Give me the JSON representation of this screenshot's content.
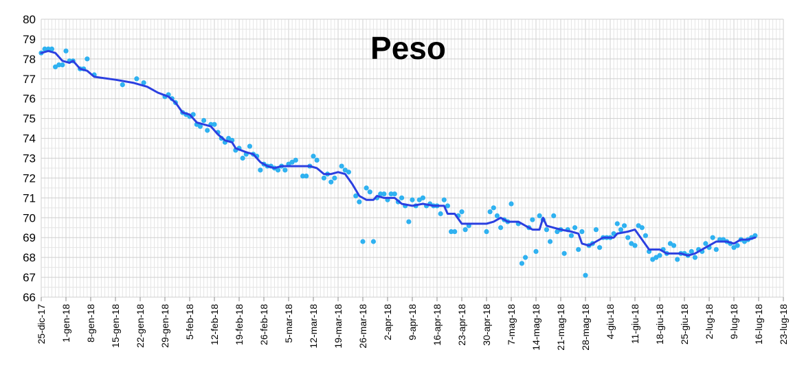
{
  "chart_data": {
    "type": "scatter",
    "title": "Peso",
    "xlabel": "",
    "ylabel": "",
    "x_axis": {
      "type": "date",
      "range": [
        "2017-12-25",
        "2018-07-23"
      ],
      "tick_labels": [
        "25-dic-17",
        "1-gen-18",
        "8-gen-18",
        "15-gen-18",
        "22-gen-18",
        "29-gen-18",
        "5-feb-18",
        "12-feb-18",
        "19-feb-18",
        "26-feb-18",
        "5-mar-18",
        "12-mar-18",
        "19-mar-18",
        "26-mar-18",
        "2-apr-18",
        "9-apr-18",
        "16-apr-18",
        "23-apr-18",
        "30-apr-18",
        "7-mag-18",
        "14-mag-18",
        "21-mag-18",
        "28-mag-18",
        "4-giu-18",
        "11-giu-18",
        "18-giu-18",
        "25-giu-18",
        "2-lug-18",
        "9-lug-18",
        "16-lug-18",
        "23-lug-18"
      ]
    },
    "y_axis": {
      "range": [
        66,
        80
      ],
      "tick_labels": [
        "66",
        "67",
        "68",
        "69",
        "70",
        "71",
        "72",
        "73",
        "74",
        "75",
        "76",
        "77",
        "78",
        "79",
        "80"
      ]
    },
    "grid": true,
    "colors": {
      "points": "#2fb1f0",
      "trend": "#2b3fe0"
    },
    "series": [
      {
        "kind": "points",
        "points": [
          [
            "2017-12-25",
            78.3
          ],
          [
            "2017-12-26",
            78.5
          ],
          [
            "2017-12-27",
            78.5
          ],
          [
            "2017-12-28",
            78.5
          ],
          [
            "2017-12-29",
            77.6
          ],
          [
            "2017-12-30",
            77.7
          ],
          [
            "2017-12-31",
            77.7
          ],
          [
            "2018-01-01",
            78.4
          ],
          [
            "2018-01-02",
            77.9
          ],
          [
            "2018-01-03",
            77.9
          ],
          [
            "2018-01-05",
            77.5
          ],
          [
            "2018-01-06",
            77.5
          ],
          [
            "2018-01-07",
            78.0
          ],
          [
            "2018-01-09",
            77.2
          ],
          [
            "2018-01-17",
            76.7
          ],
          [
            "2018-01-21",
            77.0
          ],
          [
            "2018-01-23",
            76.8
          ],
          [
            "2018-01-29",
            76.1
          ],
          [
            "2018-01-30",
            76.2
          ],
          [
            "2018-01-31",
            76.0
          ],
          [
            "2018-02-01",
            75.8
          ],
          [
            "2018-02-03",
            75.3
          ],
          [
            "2018-02-04",
            75.2
          ],
          [
            "2018-02-05",
            75.1
          ],
          [
            "2018-02-06",
            75.2
          ],
          [
            "2018-02-07",
            74.7
          ],
          [
            "2018-02-08",
            74.6
          ],
          [
            "2018-02-09",
            74.9
          ],
          [
            "2018-02-10",
            74.4
          ],
          [
            "2018-02-11",
            74.7
          ],
          [
            "2018-02-12",
            74.7
          ],
          [
            "2018-02-13",
            74.3
          ],
          [
            "2018-02-14",
            74.0
          ],
          [
            "2018-02-15",
            73.8
          ],
          [
            "2018-02-16",
            74.0
          ],
          [
            "2018-02-17",
            73.9
          ],
          [
            "2018-02-18",
            73.4
          ],
          [
            "2018-02-19",
            73.5
          ],
          [
            "2018-02-20",
            73.0
          ],
          [
            "2018-02-21",
            73.2
          ],
          [
            "2018-02-22",
            73.6
          ],
          [
            "2018-02-23",
            73.2
          ],
          [
            "2018-02-24",
            73.1
          ],
          [
            "2018-02-25",
            72.4
          ],
          [
            "2018-02-26",
            72.7
          ],
          [
            "2018-02-27",
            72.6
          ],
          [
            "2018-02-28",
            72.6
          ],
          [
            "2018-03-01",
            72.5
          ],
          [
            "2018-03-02",
            72.4
          ],
          [
            "2018-03-03",
            72.6
          ],
          [
            "2018-03-04",
            72.4
          ],
          [
            "2018-03-05",
            72.7
          ],
          [
            "2018-03-06",
            72.8
          ],
          [
            "2018-03-07",
            72.9
          ],
          [
            "2018-03-09",
            72.1
          ],
          [
            "2018-03-10",
            72.1
          ],
          [
            "2018-03-11",
            72.6
          ],
          [
            "2018-03-12",
            73.1
          ],
          [
            "2018-03-13",
            72.9
          ],
          [
            "2018-03-15",
            72.0
          ],
          [
            "2018-03-16",
            72.2
          ],
          [
            "2018-03-17",
            71.8
          ],
          [
            "2018-03-18",
            72.0
          ],
          [
            "2018-03-20",
            72.6
          ],
          [
            "2018-03-21",
            72.4
          ],
          [
            "2018-03-22",
            72.3
          ],
          [
            "2018-03-24",
            71.1
          ],
          [
            "2018-03-25",
            70.8
          ],
          [
            "2018-03-26",
            68.8
          ],
          [
            "2018-03-27",
            71.5
          ],
          [
            "2018-03-28",
            71.3
          ],
          [
            "2018-03-29",
            68.8
          ],
          [
            "2018-03-30",
            71.0
          ],
          [
            "2018-03-31",
            71.2
          ],
          [
            "2018-04-01",
            71.2
          ],
          [
            "2018-04-02",
            70.9
          ],
          [
            "2018-04-03",
            71.2
          ],
          [
            "2018-04-04",
            71.2
          ],
          [
            "2018-04-05",
            70.8
          ],
          [
            "2018-04-06",
            71.0
          ],
          [
            "2018-04-07",
            70.6
          ],
          [
            "2018-04-08",
            69.8
          ],
          [
            "2018-04-09",
            70.9
          ],
          [
            "2018-04-10",
            70.6
          ],
          [
            "2018-04-11",
            70.9
          ],
          [
            "2018-04-12",
            71.0
          ],
          [
            "2018-04-13",
            70.6
          ],
          [
            "2018-04-14",
            70.7
          ],
          [
            "2018-04-15",
            70.6
          ],
          [
            "2018-04-16",
            70.6
          ],
          [
            "2018-04-17",
            70.2
          ],
          [
            "2018-04-18",
            70.9
          ],
          [
            "2018-04-19",
            70.6
          ],
          [
            "2018-04-20",
            69.3
          ],
          [
            "2018-04-21",
            69.3
          ],
          [
            "2018-04-22",
            70.1
          ],
          [
            "2018-04-23",
            70.3
          ],
          [
            "2018-04-24",
            69.4
          ],
          [
            "2018-04-25",
            69.6
          ],
          [
            "2018-04-30",
            69.3
          ],
          [
            "2018-05-01",
            70.3
          ],
          [
            "2018-05-02",
            70.5
          ],
          [
            "2018-05-03",
            70.1
          ],
          [
            "2018-05-04",
            69.5
          ],
          [
            "2018-05-05",
            69.9
          ],
          [
            "2018-05-06",
            69.8
          ],
          [
            "2018-05-07",
            70.7
          ],
          [
            "2018-05-09",
            69.7
          ],
          [
            "2018-05-10",
            67.7
          ],
          [
            "2018-05-11",
            68.0
          ],
          [
            "2018-05-12",
            69.5
          ],
          [
            "2018-05-13",
            69.9
          ],
          [
            "2018-05-14",
            68.3
          ],
          [
            "2018-05-15",
            70.1
          ],
          [
            "2018-05-16",
            69.9
          ],
          [
            "2018-05-17",
            69.4
          ],
          [
            "2018-05-18",
            68.8
          ],
          [
            "2018-05-19",
            70.1
          ],
          [
            "2018-05-20",
            69.3
          ],
          [
            "2018-05-21",
            69.4
          ],
          [
            "2018-05-22",
            68.2
          ],
          [
            "2018-05-23",
            69.4
          ],
          [
            "2018-05-24",
            69.1
          ],
          [
            "2018-05-25",
            69.5
          ],
          [
            "2018-05-26",
            68.4
          ],
          [
            "2018-05-27",
            69.3
          ],
          [
            "2018-05-28",
            67.1
          ],
          [
            "2018-05-29",
            68.6
          ],
          [
            "2018-05-30",
            68.7
          ],
          [
            "2018-05-31",
            69.4
          ],
          [
            "2018-06-01",
            68.5
          ],
          [
            "2018-06-02",
            69.0
          ],
          [
            "2018-06-03",
            69.0
          ],
          [
            "2018-06-04",
            69.0
          ],
          [
            "2018-06-05",
            69.2
          ],
          [
            "2018-06-06",
            69.7
          ],
          [
            "2018-06-07",
            69.4
          ],
          [
            "2018-06-08",
            69.6
          ],
          [
            "2018-06-09",
            69.0
          ],
          [
            "2018-06-10",
            68.7
          ],
          [
            "2018-06-11",
            68.6
          ],
          [
            "2018-06-12",
            69.6
          ],
          [
            "2018-06-13",
            69.5
          ],
          [
            "2018-06-14",
            69.1
          ],
          [
            "2018-06-15",
            68.3
          ],
          [
            "2018-06-16",
            67.9
          ],
          [
            "2018-06-17",
            68.0
          ],
          [
            "2018-06-18",
            68.1
          ],
          [
            "2018-06-19",
            68.4
          ],
          [
            "2018-06-20",
            68.2
          ],
          [
            "2018-06-21",
            68.7
          ],
          [
            "2018-06-22",
            68.6
          ],
          [
            "2018-06-23",
            67.9
          ],
          [
            "2018-06-24",
            68.2
          ],
          [
            "2018-06-25",
            68.2
          ],
          [
            "2018-06-26",
            68.1
          ],
          [
            "2018-06-27",
            68.3
          ],
          [
            "2018-06-28",
            68.0
          ],
          [
            "2018-06-29",
            68.4
          ],
          [
            "2018-06-30",
            68.3
          ],
          [
            "2018-07-01",
            68.7
          ],
          [
            "2018-07-02",
            68.5
          ],
          [
            "2018-07-03",
            69.0
          ],
          [
            "2018-07-04",
            68.4
          ],
          [
            "2018-07-05",
            68.9
          ],
          [
            "2018-07-06",
            68.9
          ],
          [
            "2018-07-07",
            68.8
          ],
          [
            "2018-07-08",
            68.7
          ],
          [
            "2018-07-09",
            68.5
          ],
          [
            "2018-07-10",
            68.6
          ],
          [
            "2018-07-11",
            68.9
          ],
          [
            "2018-07-12",
            68.8
          ],
          [
            "2018-07-13",
            68.9
          ],
          [
            "2018-07-14",
            69.0
          ],
          [
            "2018-07-15",
            69.1
          ]
        ]
      },
      {
        "kind": "trend-line",
        "points": [
          [
            "2017-12-25",
            78.3
          ],
          [
            "2017-12-27",
            78.4
          ],
          [
            "2017-12-29",
            78.3
          ],
          [
            "2017-12-31",
            77.9
          ],
          [
            "2018-01-02",
            77.8
          ],
          [
            "2018-01-03",
            77.9
          ],
          [
            "2018-01-05",
            77.5
          ],
          [
            "2018-01-07",
            77.4
          ],
          [
            "2018-01-09",
            77.1
          ],
          [
            "2018-01-15",
            76.95
          ],
          [
            "2018-01-20",
            76.8
          ],
          [
            "2018-01-24",
            76.6
          ],
          [
            "2018-01-27",
            76.3
          ],
          [
            "2018-01-30",
            76.1
          ],
          [
            "2018-02-01",
            75.8
          ],
          [
            "2018-02-03",
            75.3
          ],
          [
            "2018-02-05",
            75.2
          ],
          [
            "2018-02-07",
            74.8
          ],
          [
            "2018-02-09",
            74.7
          ],
          [
            "2018-02-11",
            74.6
          ],
          [
            "2018-02-13",
            74.2
          ],
          [
            "2018-02-15",
            73.9
          ],
          [
            "2018-02-17",
            73.8
          ],
          [
            "2018-02-18",
            73.5
          ],
          [
            "2018-02-21",
            73.3
          ],
          [
            "2018-02-23",
            73.2
          ],
          [
            "2018-02-25",
            72.8
          ],
          [
            "2018-02-27",
            72.6
          ],
          [
            "2018-03-01",
            72.5
          ],
          [
            "2018-03-03",
            72.6
          ],
          [
            "2018-03-05",
            72.6
          ],
          [
            "2018-03-08",
            72.6
          ],
          [
            "2018-03-11",
            72.6
          ],
          [
            "2018-03-13",
            72.5
          ],
          [
            "2018-03-15",
            72.2
          ],
          [
            "2018-03-17",
            72.2
          ],
          [
            "2018-03-19",
            72.3
          ],
          [
            "2018-03-21",
            72.2
          ],
          [
            "2018-03-23",
            71.7
          ],
          [
            "2018-03-25",
            71.1
          ],
          [
            "2018-03-27",
            70.9
          ],
          [
            "2018-03-29",
            70.9
          ],
          [
            "2018-03-30",
            71.1
          ],
          [
            "2018-04-01",
            71.0
          ],
          [
            "2018-04-04",
            71.0
          ],
          [
            "2018-04-06",
            70.7
          ],
          [
            "2018-04-09",
            70.6
          ],
          [
            "2018-04-12",
            70.7
          ],
          [
            "2018-04-15",
            70.6
          ],
          [
            "2018-04-18",
            70.6
          ],
          [
            "2018-04-19",
            70.2
          ],
          [
            "2018-04-21",
            70.2
          ],
          [
            "2018-04-23",
            69.7
          ],
          [
            "2018-04-26",
            69.7
          ],
          [
            "2018-04-30",
            69.7
          ],
          [
            "2018-05-02",
            69.8
          ],
          [
            "2018-05-04",
            70.0
          ],
          [
            "2018-05-06",
            69.8
          ],
          [
            "2018-05-09",
            69.8
          ],
          [
            "2018-05-11",
            69.6
          ],
          [
            "2018-05-13",
            69.4
          ],
          [
            "2018-05-15",
            69.4
          ],
          [
            "2018-05-16",
            70.0
          ],
          [
            "2018-05-17",
            69.6
          ],
          [
            "2018-05-19",
            69.5
          ],
          [
            "2018-05-21",
            69.4
          ],
          [
            "2018-05-24",
            69.3
          ],
          [
            "2018-05-26",
            69.2
          ],
          [
            "2018-05-27",
            68.7
          ],
          [
            "2018-05-29",
            68.6
          ],
          [
            "2018-05-31",
            68.8
          ],
          [
            "2018-06-02",
            69.0
          ],
          [
            "2018-06-05",
            69.0
          ],
          [
            "2018-06-06",
            69.2
          ],
          [
            "2018-06-09",
            69.3
          ],
          [
            "2018-06-11",
            69.4
          ],
          [
            "2018-06-13",
            68.9
          ],
          [
            "2018-06-15",
            68.4
          ],
          [
            "2018-06-18",
            68.4
          ],
          [
            "2018-06-20",
            68.2
          ],
          [
            "2018-06-24",
            68.2
          ],
          [
            "2018-06-26",
            68.1
          ],
          [
            "2018-06-28",
            68.2
          ],
          [
            "2018-06-30",
            68.4
          ],
          [
            "2018-07-02",
            68.6
          ],
          [
            "2018-07-04",
            68.8
          ],
          [
            "2018-07-07",
            68.8
          ],
          [
            "2018-07-09",
            68.7
          ],
          [
            "2018-07-11",
            68.9
          ],
          [
            "2018-07-13",
            68.9
          ],
          [
            "2018-07-15",
            69.0
          ]
        ]
      }
    ]
  }
}
